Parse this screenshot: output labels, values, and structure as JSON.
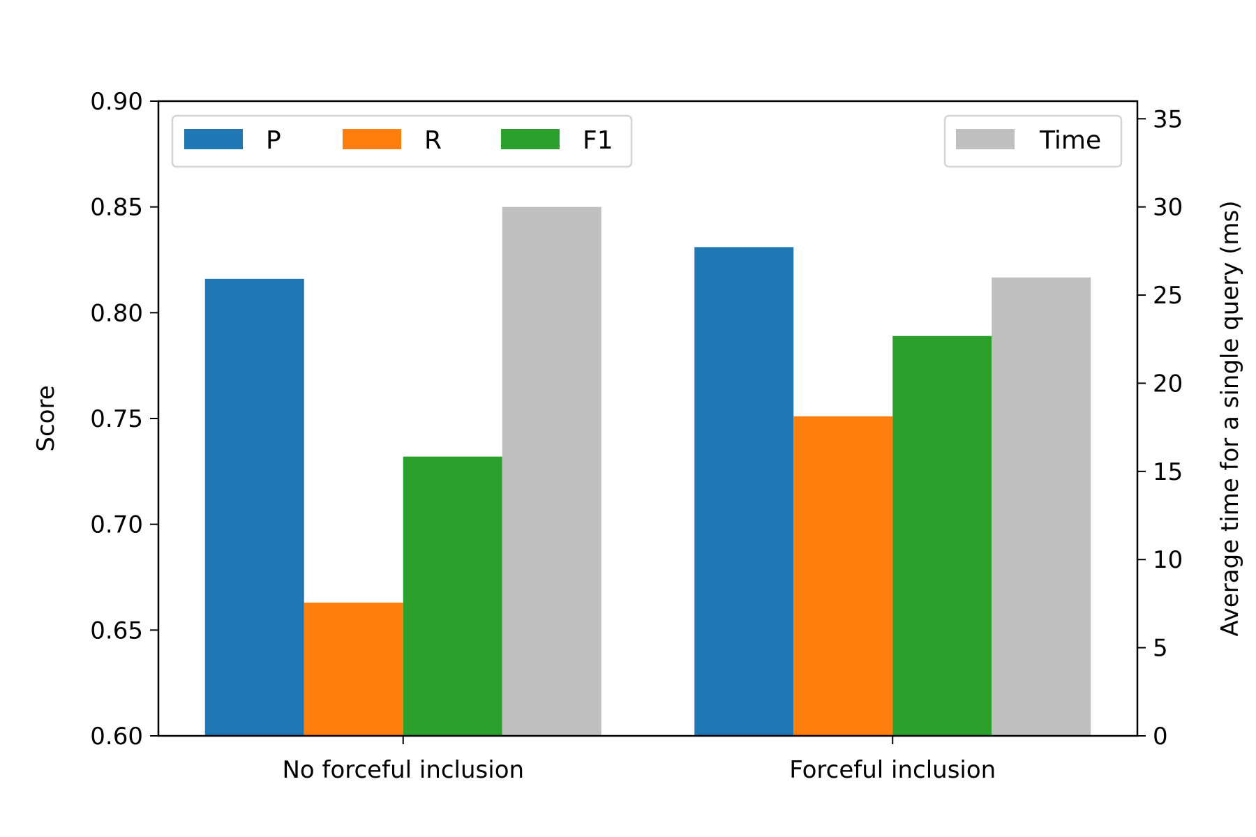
{
  "chart_data": {
    "type": "bar",
    "categories": [
      "No forceful inclusion",
      "Forceful inclusion"
    ],
    "series": [
      {
        "name": "P",
        "axis": "left",
        "color": "#1f77b4",
        "values": [
          0.816,
          0.831
        ]
      },
      {
        "name": "R",
        "axis": "left",
        "color": "#ff7f0e",
        "values": [
          0.663,
          0.751
        ]
      },
      {
        "name": "F1",
        "axis": "left",
        "color": "#2ca02c",
        "values": [
          0.732,
          0.789
        ]
      },
      {
        "name": "Time",
        "axis": "right",
        "color": "#c0c0c0",
        "values": [
          30.0,
          26.0
        ]
      }
    ],
    "ylabel": "Score",
    "ylabel_right": "Average time for a single query (ms)",
    "ylim": [
      0.6,
      0.9
    ],
    "ylim_right": [
      0,
      36
    ],
    "yticks": [
      "0.60",
      "0.65",
      "0.70",
      "0.75",
      "0.80",
      "0.85",
      "0.90"
    ],
    "yticks_right": [
      "0",
      "5",
      "10",
      "15",
      "20",
      "25",
      "30",
      "35"
    ],
    "legend_left": [
      "P",
      "R",
      "F1"
    ],
    "legend_right": [
      "Time"
    ],
    "legend_left_placement": "top-left",
    "legend_right_placement": "top-right",
    "grid": false
  }
}
